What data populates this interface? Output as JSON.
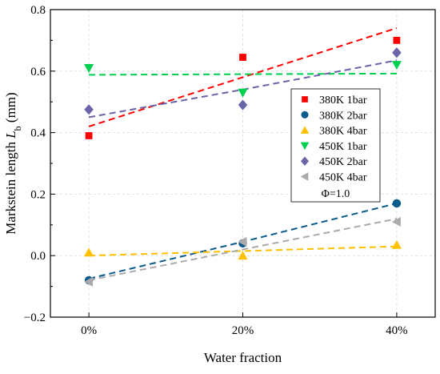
{
  "chart_data": {
    "type": "scatter",
    "xlabel": "Water fraction",
    "ylabel": "Markstein length ",
    "ylabel_symbol": "L",
    "ylabel_sub": "b",
    "ylabel_unit": " (mm)",
    "categories": [
      "0%",
      "20%",
      "40%"
    ],
    "x": [
      0,
      20,
      40
    ],
    "xlim": [
      -5,
      45
    ],
    "ylim": [
      -0.2,
      0.8
    ],
    "yticks": [
      -0.2,
      0.0,
      0.2,
      0.4,
      0.6,
      0.8
    ],
    "ytick_labels": [
      "−0.2",
      "0.0",
      "0.2",
      "0.4",
      "0.6",
      "0.8"
    ],
    "grid": true,
    "legend_placement": "right",
    "annotation": "Φ=1.0",
    "series": [
      {
        "name": "380K 1bar",
        "marker": "square",
        "color": "#ff0000",
        "values": [
          0.39,
          0.645,
          0.7
        ],
        "fit": [
          0.42,
          0.58,
          0.74
        ]
      },
      {
        "name": "380K 2bar",
        "marker": "circle",
        "color": "#0a5a8c",
        "values": [
          -0.08,
          0.04,
          0.17
        ],
        "fit": [
          -0.075,
          0.045,
          0.17
        ]
      },
      {
        "name": "380K 4bar",
        "marker": "triangle-up",
        "color": "#ffc000",
        "values": [
          0.01,
          0.0,
          0.035
        ],
        "fit": [
          0.0,
          0.015,
          0.03
        ]
      },
      {
        "name": "450K 1bar",
        "marker": "triangle-down",
        "color": "#00d050",
        "values": [
          0.61,
          0.53,
          0.62
        ],
        "fit": [
          0.588,
          0.59,
          0.592
        ]
      },
      {
        "name": "450K 2bar",
        "marker": "diamond",
        "color": "#6a64a8",
        "values": [
          0.475,
          0.49,
          0.66
        ],
        "fit": [
          0.45,
          0.54,
          0.635
        ]
      },
      {
        "name": "450K 4bar",
        "marker": "triangle-left",
        "color": "#aaaaaa",
        "values": [
          -0.085,
          0.045,
          0.11
        ],
        "fit": [
          -0.08,
          0.02,
          0.12
        ]
      }
    ]
  }
}
